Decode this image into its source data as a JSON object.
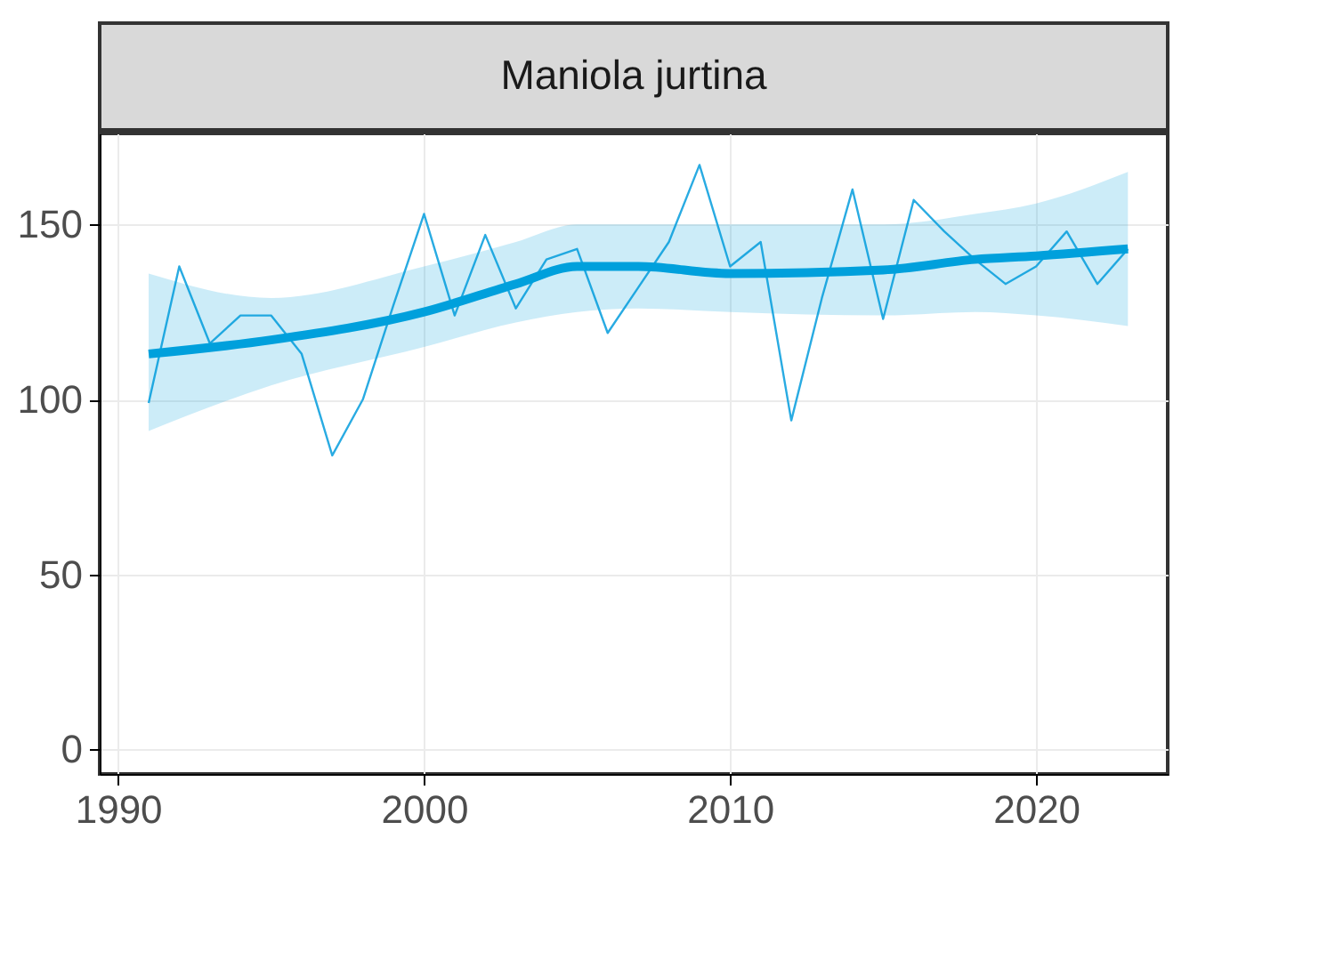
{
  "chart_data": {
    "type": "line",
    "title": "Maniola jurtina",
    "x": [
      1991,
      1992,
      1993,
      1994,
      1995,
      1996,
      1997,
      1998,
      1999,
      2000,
      2001,
      2002,
      2003,
      2004,
      2005,
      2006,
      2007,
      2008,
      2009,
      2010,
      2011,
      2012,
      2013,
      2014,
      2015,
      2016,
      2017,
      2018,
      2019,
      2020,
      2021,
      2022,
      2023
    ],
    "series": [
      {
        "color": "#29abe2",
        "values": [
          99,
          138,
          116,
          124,
          124,
          113,
          84,
          100,
          127,
          153,
          124,
          147,
          126,
          140,
          143,
          119,
          132,
          145,
          167,
          138,
          145,
          94,
          129,
          160,
          123,
          157,
          148,
          140,
          133,
          138,
          148,
          133,
          143
        ]
      },
      {
        "color": "#00a0dc",
        "x": [
          1991,
          1995,
          2000,
          2003,
          2005,
          2007,
          2010,
          2015,
          2018,
          2020,
          2023
        ],
        "values": [
          113,
          117,
          125,
          133,
          138,
          138,
          136,
          137,
          140,
          141,
          143
        ],
        "lower": [
          91,
          104,
          115,
          122,
          125,
          126,
          125,
          124,
          125,
          124,
          121
        ],
        "upper": [
          136,
          129,
          138,
          145,
          150,
          150,
          150,
          150,
          153,
          156,
          165
        ]
      }
    ],
    "xlim": [
      1989.4,
      2024.3
    ],
    "ylim": [
      -7,
      176
    ],
    "xticks": [
      1990,
      2000,
      2010,
      2020
    ],
    "yticks": [
      0,
      50,
      100,
      150
    ],
    "grid": true
  }
}
